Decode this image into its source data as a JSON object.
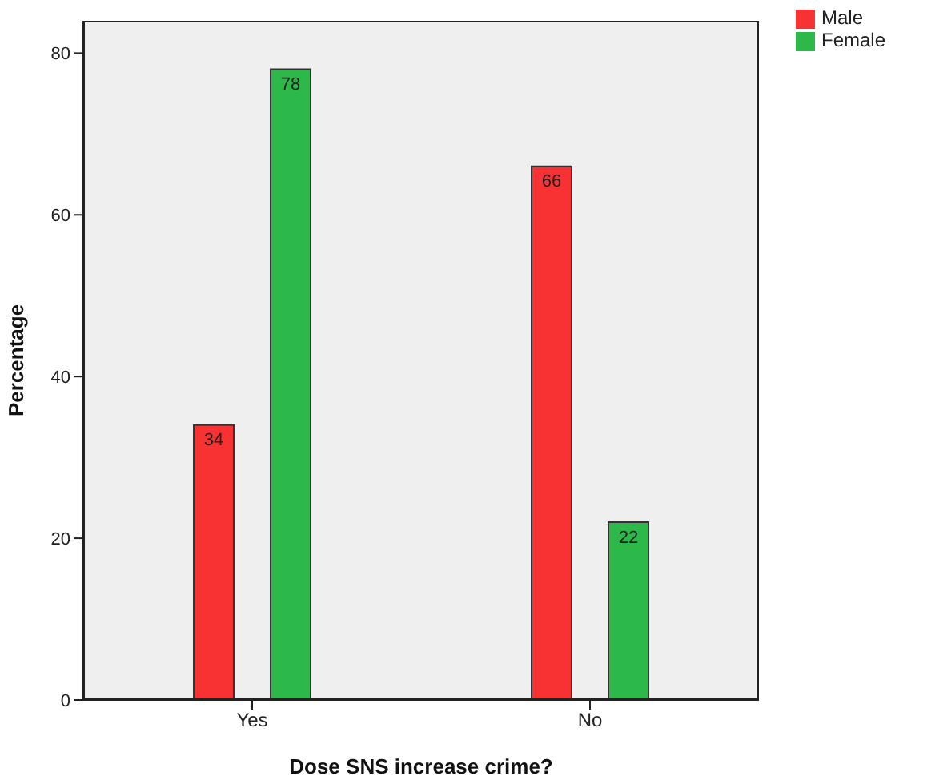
{
  "chart_data": {
    "type": "bar",
    "xlabel": "Dose SNS increase crime?",
    "ylabel": "Percentage",
    "categories": [
      "Yes",
      "No"
    ],
    "series": [
      {
        "name": "Male",
        "color": "#f83232",
        "values": [
          34,
          66
        ]
      },
      {
        "name": "Female",
        "color": "#2db84a",
        "values": [
          78,
          22
        ]
      }
    ],
    "ylim": [
      0,
      84
    ],
    "yticks": [
      0,
      20,
      40,
      60,
      80
    ],
    "data_labels": true,
    "legend": "top right"
  }
}
